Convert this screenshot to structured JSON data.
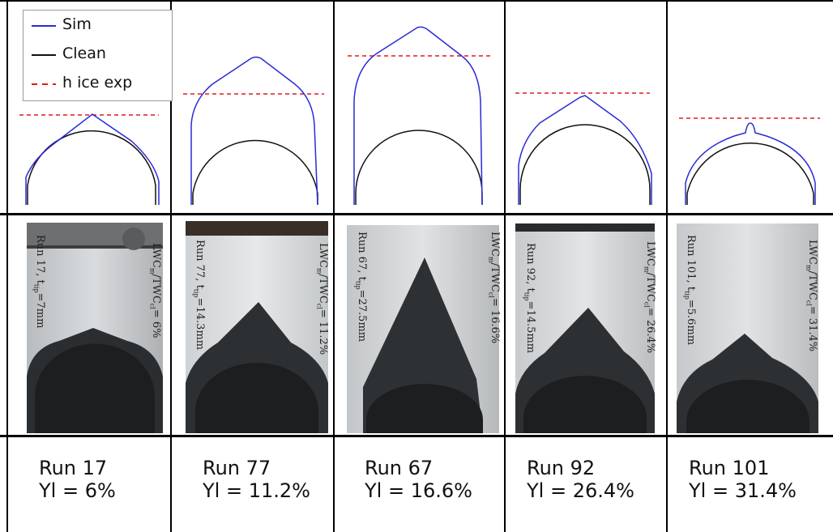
{
  "legend": {
    "sim": {
      "label": "Sim",
      "color": "#2a2ad8"
    },
    "clean": {
      "label": "Clean",
      "color": "#111111"
    },
    "hice": {
      "label": "h ice exp",
      "color": "#e01a1a"
    }
  },
  "runs": [
    {
      "run_label": "Run 17",
      "yl_label": "Yl = 6%",
      "photo_left": "Run 17, t",
      "photo_left_sub": "tip",
      "photo_left_end": "=7mm",
      "photo_right": "LWC",
      "photo_right_sub1": "m",
      "photo_right_mid": "/TWC",
      "photo_right_sub2": "cl",
      "photo_right_end": "= 6%"
    },
    {
      "run_label": "Run 77",
      "yl_label": "Yl = 11.2%",
      "photo_left": "Run 77, t",
      "photo_left_sub": "tip",
      "photo_left_end": "=14.3mm",
      "photo_right": "LWC",
      "photo_right_sub1": "m",
      "photo_right_mid": "/TWC",
      "photo_right_sub2": "cl",
      "photo_right_end": "= 11.2%"
    },
    {
      "run_label": "Run 67",
      "yl_label": "Yl = 16.6%",
      "photo_left": "Run 67, t",
      "photo_left_sub": "tip",
      "photo_left_end": "=27.5mm",
      "photo_right": "LWC",
      "photo_right_sub1": "m",
      "photo_right_mid": "/TWC",
      "photo_right_sub2": "cl",
      "photo_right_end": "= 16.6%"
    },
    {
      "run_label": "Run 92",
      "yl_label": "Yl = 26.4%",
      "photo_left": "Run 92, t",
      "photo_left_sub": "tip",
      "photo_left_end": "=14.5mm",
      "photo_right": "LWC",
      "photo_right_sub1": "m",
      "photo_right_mid": "/TWC",
      "photo_right_sub2": "cl",
      "photo_right_end": "= 26.4%"
    },
    {
      "run_label": "Run 101",
      "yl_label": "Yl = 31.4%",
      "photo_left": "Run 101, t",
      "photo_left_sub": "tip",
      "photo_left_end": "=5.6mm",
      "photo_right": "LWC",
      "photo_right_sub1": "m",
      "photo_right_mid": "/TWC",
      "photo_right_sub2": "cl",
      "photo_right_end": "= 31.4%"
    }
  ]
}
